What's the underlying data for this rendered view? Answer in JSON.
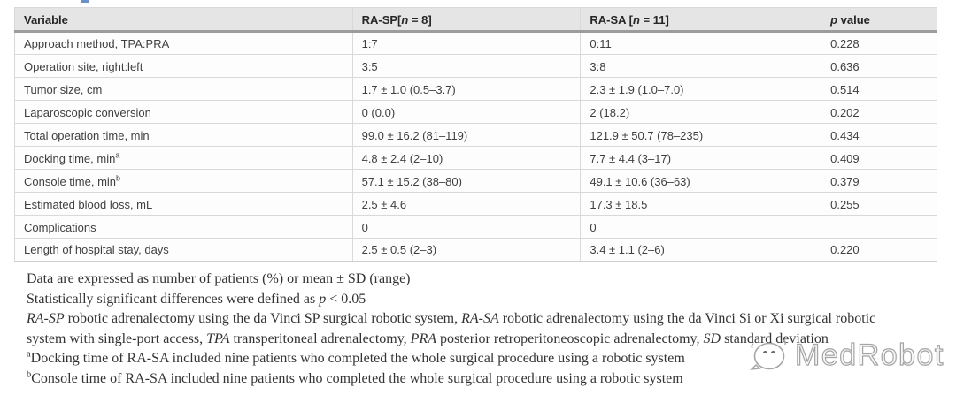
{
  "colors": {
    "header_bg": "#e5e5e5",
    "header_separator": "#9c9c9c",
    "cell_border": "#d9d9d9",
    "table_text": "#3f3f3f",
    "footnote_text": "#333333",
    "top_artifact": "#4d7ebf",
    "watermark_outline": "#a5a5a5"
  },
  "table": {
    "headers": {
      "variable": [
        {
          "text": "Variable"
        }
      ],
      "rasp": [
        {
          "text": "RA-SP["
        },
        {
          "text": "n",
          "style": "i"
        },
        {
          "text": " = 8]"
        }
      ],
      "rasa": [
        {
          "text": "RA-SA ["
        },
        {
          "text": "n",
          "style": "i"
        },
        {
          "text": " = 11]"
        }
      ],
      "p": [
        {
          "text": "p",
          "style": "i"
        },
        {
          "text": " value"
        }
      ]
    },
    "rows": [
      {
        "label": [
          {
            "text": "Approach method, TPA:PRA"
          }
        ],
        "rasp": "1:7",
        "rasa": "0:11",
        "p": "0.228"
      },
      {
        "label": [
          {
            "text": "Operation site, right:left"
          }
        ],
        "rasp": "3:5",
        "rasa": "3:8",
        "p": "0.636"
      },
      {
        "label": [
          {
            "text": "Tumor size, cm"
          }
        ],
        "rasp": "1.7 ± 1.0 (0.5–3.7)",
        "rasa": "2.3 ± 1.9 (1.0–7.0)",
        "p": "0.514"
      },
      {
        "label": [
          {
            "text": "Laparoscopic conversion"
          }
        ],
        "rasp": "0 (0.0)",
        "rasa": "2 (18.2)",
        "p": "0.202"
      },
      {
        "label": [
          {
            "text": "Total operation time, min"
          }
        ],
        "rasp": "99.0 ± 16.2 (81–119)",
        "rasa": "121.9 ± 50.7 (78–235)",
        "p": "0.434"
      },
      {
        "label": [
          {
            "text": "Docking time, min"
          },
          {
            "text": "a",
            "style": "sup"
          }
        ],
        "rasp": "4.8 ± 2.4 (2–10)",
        "rasa": "7.7 ± 4.4 (3–17)",
        "p": "0.409"
      },
      {
        "label": [
          {
            "text": "Console time, min"
          },
          {
            "text": "b",
            "style": "sup"
          }
        ],
        "rasp": "57.1 ± 15.2 (38–80)",
        "rasa": "49.1 ± 10.6 (36–63)",
        "p": "0.379"
      },
      {
        "label": [
          {
            "text": "Estimated blood loss, mL"
          }
        ],
        "rasp": "2.5 ± 4.6",
        "rasa": "17.3 ± 18.5",
        "p": "0.255"
      },
      {
        "label": [
          {
            "text": "Complications"
          }
        ],
        "rasp": "0",
        "rasa": "0",
        "p": ""
      },
      {
        "label": [
          {
            "text": "Length of hospital stay, days"
          }
        ],
        "rasp": "2.5 ± 0.5 (2–3)",
        "rasa": "3.4 ± 1.1 (2–6)",
        "p": "0.220"
      }
    ]
  },
  "footnotes": {
    "line1": [
      {
        "text": "Data are expressed as number of patients (%) or mean ± SD (range)"
      }
    ],
    "line2": [
      {
        "text": "Statistically significant differences were defined as "
      },
      {
        "text": "p",
        "style": "i"
      },
      {
        "text": " < 0.05"
      }
    ],
    "line3": [
      {
        "text": "RA-SP",
        "style": "i"
      },
      {
        "text": " robotic adrenalectomy using the da Vinci SP surgical robotic system, "
      },
      {
        "text": "RA-SA",
        "style": "i"
      },
      {
        "text": " robotic adrenalectomy using the da Vinci Si or Xi surgical robotic system with single-port access, "
      },
      {
        "text": "TPA",
        "style": "i"
      },
      {
        "text": " transperitoneal adrenalectomy, "
      },
      {
        "text": "PRA",
        "style": "i"
      },
      {
        "text": " posterior retroperitoneoscopic adrenalectomy, "
      },
      {
        "text": "SD",
        "style": "i"
      },
      {
        "text": " standard deviation"
      }
    ],
    "line4": [
      {
        "text": "a",
        "style": "sup"
      },
      {
        "text": "Docking time of RA-SA included nine patients who completed the whole surgical procedure using a robotic system"
      }
    ],
    "line5": [
      {
        "text": "b",
        "style": "sup"
      },
      {
        "text": "Console time of RA-SA included nine patients who completed the whole surgical procedure using a robotic system"
      }
    ]
  },
  "watermark": {
    "text": "MedRobot",
    "icon": "robot-face-icon"
  }
}
